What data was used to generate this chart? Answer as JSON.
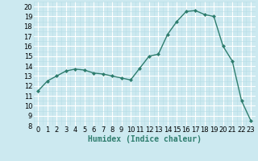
{
  "x": [
    0,
    1,
    2,
    3,
    4,
    5,
    6,
    7,
    8,
    9,
    10,
    11,
    12,
    13,
    14,
    15,
    16,
    17,
    18,
    19,
    20,
    21,
    22,
    23
  ],
  "y": [
    11.5,
    12.5,
    13.0,
    13.5,
    13.7,
    13.6,
    13.3,
    13.2,
    13.0,
    12.8,
    12.6,
    13.8,
    15.0,
    15.2,
    17.2,
    18.5,
    19.5,
    19.6,
    19.2,
    19.0,
    16.0,
    14.5,
    10.5,
    8.5
  ],
  "line_color": "#2e7d6e",
  "marker": "D",
  "marker_size": 2,
  "bg_color": "#cce9f0",
  "grid_major_color": "#ffffff",
  "grid_minor_color": "#b8dde6",
  "xlabel": "Humidex (Indice chaleur)",
  "xlim": [
    -0.5,
    23.5
  ],
  "ylim": [
    8,
    20.5
  ],
  "yticks": [
    8,
    9,
    10,
    11,
    12,
    13,
    14,
    15,
    16,
    17,
    18,
    19,
    20
  ],
  "xticks": [
    0,
    1,
    2,
    3,
    4,
    5,
    6,
    7,
    8,
    9,
    10,
    11,
    12,
    13,
    14,
    15,
    16,
    17,
    18,
    19,
    20,
    21,
    22,
    23
  ],
  "xlabel_fontsize": 7,
  "tick_fontsize": 6,
  "line_width": 1.0
}
